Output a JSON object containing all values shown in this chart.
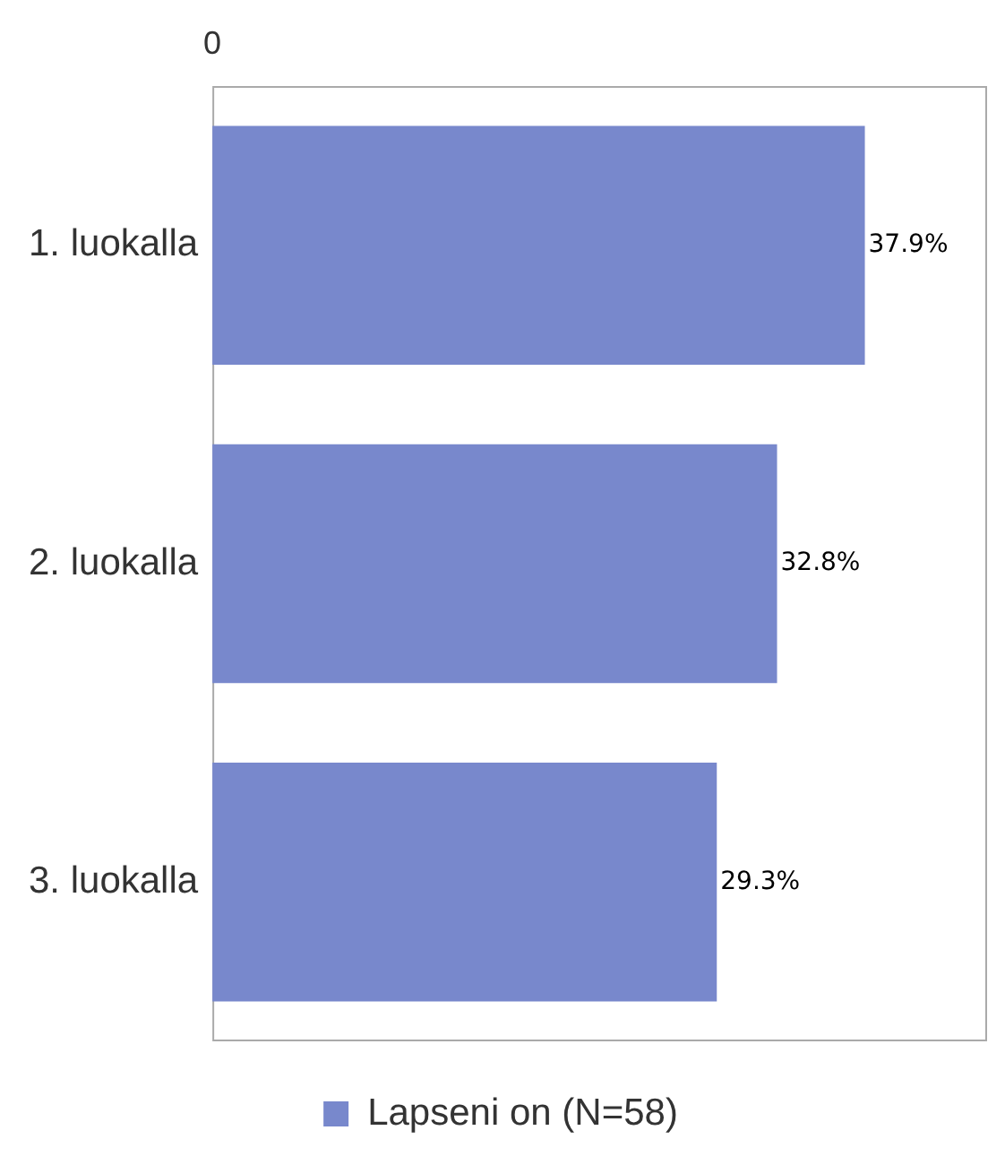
{
  "chart_data": {
    "type": "bar",
    "orientation": "horizontal",
    "categories": [
      "1. luokalla",
      "2. luokalla",
      "3. luokalla"
    ],
    "series": [
      {
        "name": "Lapseni on (N=58)",
        "color": "#7888cc",
        "values": [
          37.9,
          32.8,
          29.3
        ],
        "value_labels": [
          "37.9%",
          "32.8%",
          "29.3%"
        ]
      }
    ],
    "annotations": [
      "0"
    ],
    "legend": "bottom"
  }
}
